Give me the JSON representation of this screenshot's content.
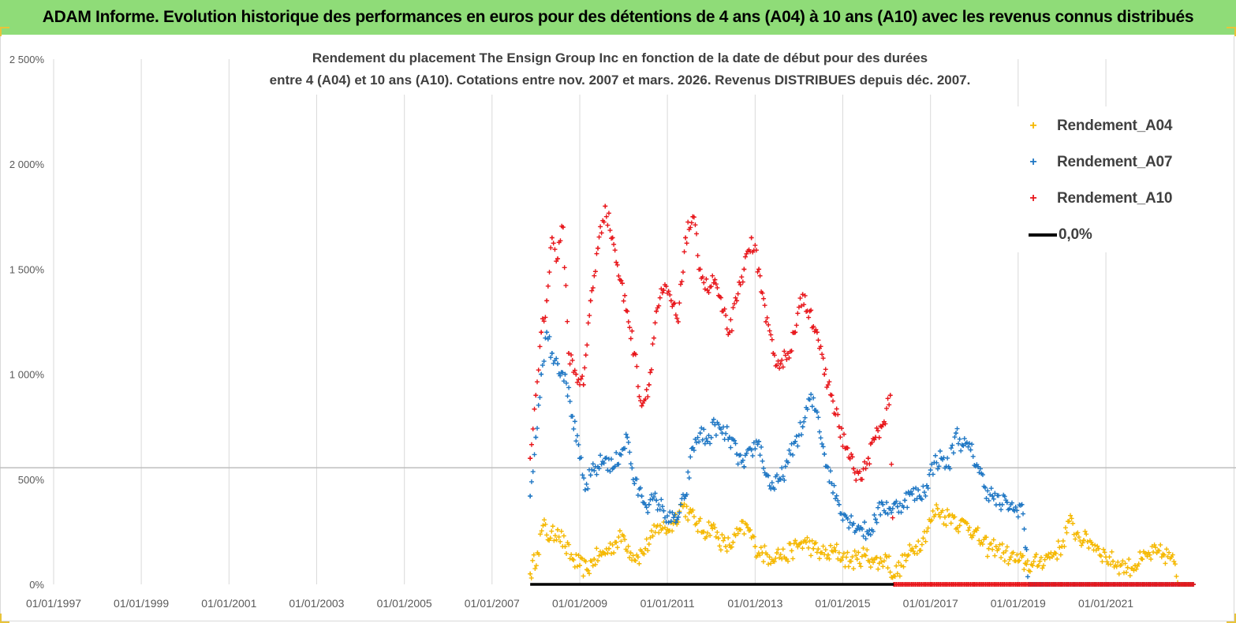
{
  "banner": {
    "title": "ADAM Informe. Evolution historique des performances en euros pour des détentions de 4 ans (A04) à 10 ans (A10) avec les revenus connus distribués"
  },
  "chart_data": {
    "type": "scatter",
    "title_line1": "Rendement du placement The Ensign Group Inc en fonction de la date de début pour des durées",
    "title_line2": "entre 4 (A04) et 10 ans (A10).  Cotations entre nov. 2007 et mars. 2026. Revenus DISTRIBUES depuis déc. 2007.",
    "x_range": [
      "1997-01-01",
      "2022-12-31"
    ],
    "ylim": [
      0,
      2500
    ],
    "y_unit": "%",
    "y_ticks": [
      0,
      500,
      1000,
      1500,
      2000,
      2500
    ],
    "y_tick_labels": [
      "0%",
      "500%",
      "1 000%",
      "1 500%",
      "2 000%",
      "2 500%"
    ],
    "x_tick_labels": [
      "01/01/1997",
      "01/01/1999",
      "01/01/2001",
      "01/01/2003",
      "01/01/2005",
      "01/01/2007",
      "01/01/2009",
      "01/01/2011",
      "01/01/2013",
      "01/01/2015",
      "01/01/2017",
      "01/01/2019",
      "01/01/2021"
    ],
    "gridlines": "vertical",
    "reference_line_y": 555,
    "legend_position": "top-right",
    "series": [
      {
        "name": "Rendement_A04",
        "color": "#f5b800",
        "marker": "+",
        "points": [
          [
            "2007-11-15",
            50
          ],
          [
            "2008-01-15",
            150
          ],
          [
            "2008-03-01",
            280
          ],
          [
            "2008-05-01",
            220
          ],
          [
            "2008-07-01",
            260
          ],
          [
            "2008-09-01",
            180
          ],
          [
            "2008-11-01",
            120
          ],
          [
            "2009-01-01",
            90
          ],
          [
            "2009-03-01",
            70
          ],
          [
            "2009-05-01",
            120
          ],
          [
            "2009-07-01",
            140
          ],
          [
            "2009-09-01",
            170
          ],
          [
            "2009-11-01",
            200
          ],
          [
            "2010-01-01",
            230
          ],
          [
            "2010-03-01",
            150
          ],
          [
            "2010-05-01",
            130
          ],
          [
            "2010-07-01",
            170
          ],
          [
            "2010-09-01",
            230
          ],
          [
            "2010-11-01",
            280
          ],
          [
            "2011-01-01",
            260
          ],
          [
            "2011-03-01",
            300
          ],
          [
            "2011-05-01",
            380
          ],
          [
            "2011-07-01",
            340
          ],
          [
            "2011-09-01",
            290
          ],
          [
            "2011-11-01",
            250
          ],
          [
            "2012-01-01",
            280
          ],
          [
            "2012-03-01",
            220
          ],
          [
            "2012-05-01",
            180
          ],
          [
            "2012-07-01",
            200
          ],
          [
            "2012-09-01",
            260
          ],
          [
            "2012-11-01",
            270
          ],
          [
            "2013-01-01",
            180
          ],
          [
            "2013-03-01",
            150
          ],
          [
            "2013-05-01",
            130
          ],
          [
            "2013-07-01",
            150
          ],
          [
            "2013-09-01",
            130
          ],
          [
            "2013-11-01",
            160
          ],
          [
            "2014-01-01",
            190
          ],
          [
            "2014-03-01",
            200
          ],
          [
            "2014-05-01",
            170
          ],
          [
            "2014-07-01",
            150
          ],
          [
            "2014-09-01",
            140
          ],
          [
            "2014-11-01",
            160
          ],
          [
            "2015-01-01",
            130
          ],
          [
            "2015-03-01",
            110
          ],
          [
            "2015-05-01",
            120
          ],
          [
            "2015-07-01",
            140
          ],
          [
            "2015-09-01",
            120
          ],
          [
            "2015-11-01",
            100
          ],
          [
            "2016-01-01",
            130
          ],
          [
            "2016-03-01",
            40
          ],
          [
            "2016-05-01",
            90
          ],
          [
            "2016-07-01",
            140
          ],
          [
            "2016-09-01",
            180
          ],
          [
            "2016-11-01",
            220
          ],
          [
            "2017-01-01",
            300
          ],
          [
            "2017-03-01",
            360
          ],
          [
            "2017-05-01",
            320
          ],
          [
            "2017-07-01",
            330
          ],
          [
            "2017-09-01",
            280
          ],
          [
            "2017-11-01",
            290
          ],
          [
            "2018-01-01",
            250
          ],
          [
            "2018-03-01",
            200
          ],
          [
            "2018-05-01",
            170
          ],
          [
            "2018-07-01",
            180
          ],
          [
            "2018-09-01",
            150
          ],
          [
            "2018-11-01",
            130
          ],
          [
            "2019-01-01",
            110
          ],
          [
            "2019-03-01",
            100
          ],
          [
            "2019-05-01",
            90
          ],
          [
            "2019-07-01",
            110
          ],
          [
            "2019-09-01",
            130
          ],
          [
            "2019-11-01",
            150
          ],
          [
            "2020-01-01",
            180
          ],
          [
            "2020-03-01",
            300
          ],
          [
            "2020-05-01",
            240
          ],
          [
            "2020-07-01",
            210
          ],
          [
            "2020-09-01",
            200
          ],
          [
            "2020-11-01",
            170
          ],
          [
            "2021-01-01",
            130
          ],
          [
            "2021-03-01",
            110
          ],
          [
            "2021-05-01",
            90
          ],
          [
            "2021-07-01",
            80
          ],
          [
            "2021-09-01",
            90
          ],
          [
            "2021-11-01",
            120
          ],
          [
            "2022-01-01",
            140
          ],
          [
            "2022-03-01",
            150
          ],
          [
            "2022-05-01",
            140
          ],
          [
            "2022-07-01",
            130
          ],
          [
            "2022-09-01",
            0
          ],
          [
            "2022-11-01",
            0
          ],
          [
            "2022-12-31",
            0
          ]
        ]
      },
      {
        "name": "Rendement_A07",
        "color": "#1f77c4",
        "marker": "+",
        "points": [
          [
            "2007-11-15",
            420
          ],
          [
            "2008-01-01",
            700
          ],
          [
            "2008-02-15",
            1000
          ],
          [
            "2008-04-01",
            1200
          ],
          [
            "2008-05-15",
            1100
          ],
          [
            "2008-07-01",
            1050
          ],
          [
            "2008-09-01",
            1000
          ],
          [
            "2008-11-01",
            800
          ],
          [
            "2009-01-01",
            600
          ],
          [
            "2009-02-15",
            450
          ],
          [
            "2009-04-01",
            520
          ],
          [
            "2009-06-01",
            560
          ],
          [
            "2009-08-01",
            600
          ],
          [
            "2009-10-01",
            550
          ],
          [
            "2009-12-01",
            620
          ],
          [
            "2010-02-01",
            700
          ],
          [
            "2010-04-01",
            480
          ],
          [
            "2010-06-01",
            420
          ],
          [
            "2010-08-01",
            380
          ],
          [
            "2010-10-01",
            400
          ],
          [
            "2010-12-01",
            350
          ],
          [
            "2011-02-01",
            300
          ],
          [
            "2011-04-01",
            320
          ],
          [
            "2011-06-01",
            420
          ],
          [
            "2011-08-01",
            650
          ],
          [
            "2011-10-01",
            720
          ],
          [
            "2011-12-01",
            680
          ],
          [
            "2012-02-01",
            760
          ],
          [
            "2012-04-01",
            720
          ],
          [
            "2012-06-01",
            700
          ],
          [
            "2012-08-01",
            620
          ],
          [
            "2012-10-01",
            560
          ],
          [
            "2012-12-01",
            640
          ],
          [
            "2013-02-01",
            680
          ],
          [
            "2013-04-01",
            520
          ],
          [
            "2013-06-01",
            460
          ],
          [
            "2013-08-01",
            500
          ],
          [
            "2013-10-01",
            580
          ],
          [
            "2013-12-01",
            680
          ],
          [
            "2014-02-01",
            750
          ],
          [
            "2014-04-01",
            880
          ],
          [
            "2014-06-01",
            820
          ],
          [
            "2014-08-01",
            620
          ],
          [
            "2014-10-01",
            480
          ],
          [
            "2014-12-01",
            380
          ],
          [
            "2015-02-01",
            320
          ],
          [
            "2015-04-01",
            290
          ],
          [
            "2015-06-01",
            270
          ],
          [
            "2015-08-01",
            240
          ],
          [
            "2015-10-01",
            310
          ],
          [
            "2015-12-01",
            380
          ],
          [
            "2016-02-01",
            360
          ],
          [
            "2016-04-01",
            370
          ],
          [
            "2016-06-01",
            400
          ],
          [
            "2016-08-01",
            430
          ],
          [
            "2016-10-01",
            420
          ],
          [
            "2016-12-01",
            470
          ],
          [
            "2017-02-01",
            580
          ],
          [
            "2017-04-01",
            600
          ],
          [
            "2017-06-01",
            560
          ],
          [
            "2017-08-01",
            720
          ],
          [
            "2017-10-01",
            660
          ],
          [
            "2017-12-01",
            640
          ],
          [
            "2018-02-01",
            560
          ],
          [
            "2018-04-01",
            460
          ],
          [
            "2018-06-01",
            420
          ],
          [
            "2018-08-01",
            380
          ],
          [
            "2018-10-01",
            390
          ],
          [
            "2018-12-01",
            350
          ],
          [
            "2019-02-01",
            380
          ],
          [
            "2019-04-01",
            0
          ],
          [
            "2020-01-01",
            0
          ],
          [
            "2021-01-01",
            0
          ],
          [
            "2022-12-31",
            0
          ]
        ]
      },
      {
        "name": "Rendement_A10",
        "color": "#e8161b",
        "marker": "+",
        "points": [
          [
            "2007-11-15",
            600
          ],
          [
            "2008-01-01",
            900
          ],
          [
            "2008-02-15",
            1200
          ],
          [
            "2008-04-01",
            1350
          ],
          [
            "2008-05-15",
            1650
          ],
          [
            "2008-07-01",
            1550
          ],
          [
            "2008-08-15",
            1700
          ],
          [
            "2008-10-01",
            1100
          ],
          [
            "2008-12-01",
            1000
          ],
          [
            "2009-02-01",
            950
          ],
          [
            "2009-04-01",
            1350
          ],
          [
            "2009-06-01",
            1600
          ],
          [
            "2009-08-01",
            1800
          ],
          [
            "2009-10-01",
            1650
          ],
          [
            "2009-12-01",
            1450
          ],
          [
            "2010-02-01",
            1300
          ],
          [
            "2010-04-01",
            1100
          ],
          [
            "2010-06-01",
            850
          ],
          [
            "2010-08-01",
            950
          ],
          [
            "2010-10-01",
            1300
          ],
          [
            "2010-12-01",
            1400
          ],
          [
            "2011-02-01",
            1350
          ],
          [
            "2011-04-01",
            1250
          ],
          [
            "2011-06-01",
            1650
          ],
          [
            "2011-08-01",
            1750
          ],
          [
            "2011-10-01",
            1500
          ],
          [
            "2011-12-01",
            1400
          ],
          [
            "2012-02-01",
            1450
          ],
          [
            "2012-04-01",
            1300
          ],
          [
            "2012-06-01",
            1200
          ],
          [
            "2012-08-01",
            1350
          ],
          [
            "2012-10-01",
            1500
          ],
          [
            "2012-12-01",
            1650
          ],
          [
            "2013-02-01",
            1500
          ],
          [
            "2013-04-01",
            1250
          ],
          [
            "2013-06-01",
            1100
          ],
          [
            "2013-08-01",
            1050
          ],
          [
            "2013-10-01",
            1100
          ],
          [
            "2013-12-01",
            1200
          ],
          [
            "2014-02-01",
            1380
          ],
          [
            "2014-04-01",
            1300
          ],
          [
            "2014-06-01",
            1200
          ],
          [
            "2014-08-01",
            1000
          ],
          [
            "2014-10-01",
            900
          ],
          [
            "2014-12-01",
            750
          ],
          [
            "2015-02-01",
            650
          ],
          [
            "2015-04-01",
            550
          ],
          [
            "2015-06-01",
            500
          ],
          [
            "2015-08-01",
            600
          ],
          [
            "2015-10-01",
            700
          ],
          [
            "2015-12-01",
            760
          ],
          [
            "2016-02-01",
            900
          ],
          [
            "2016-03-01",
            0
          ],
          [
            "2017-01-01",
            0
          ],
          [
            "2018-01-01",
            0
          ],
          [
            "2019-01-01",
            0
          ],
          [
            "2020-01-01",
            0
          ],
          [
            "2021-01-01",
            0
          ],
          [
            "2022-12-31",
            0
          ]
        ]
      }
    ],
    "zero_line": {
      "name": "0,0%",
      "color": "#000000",
      "value": 0,
      "x_range": [
        "2007-11-15",
        "2016-03-01"
      ]
    }
  }
}
